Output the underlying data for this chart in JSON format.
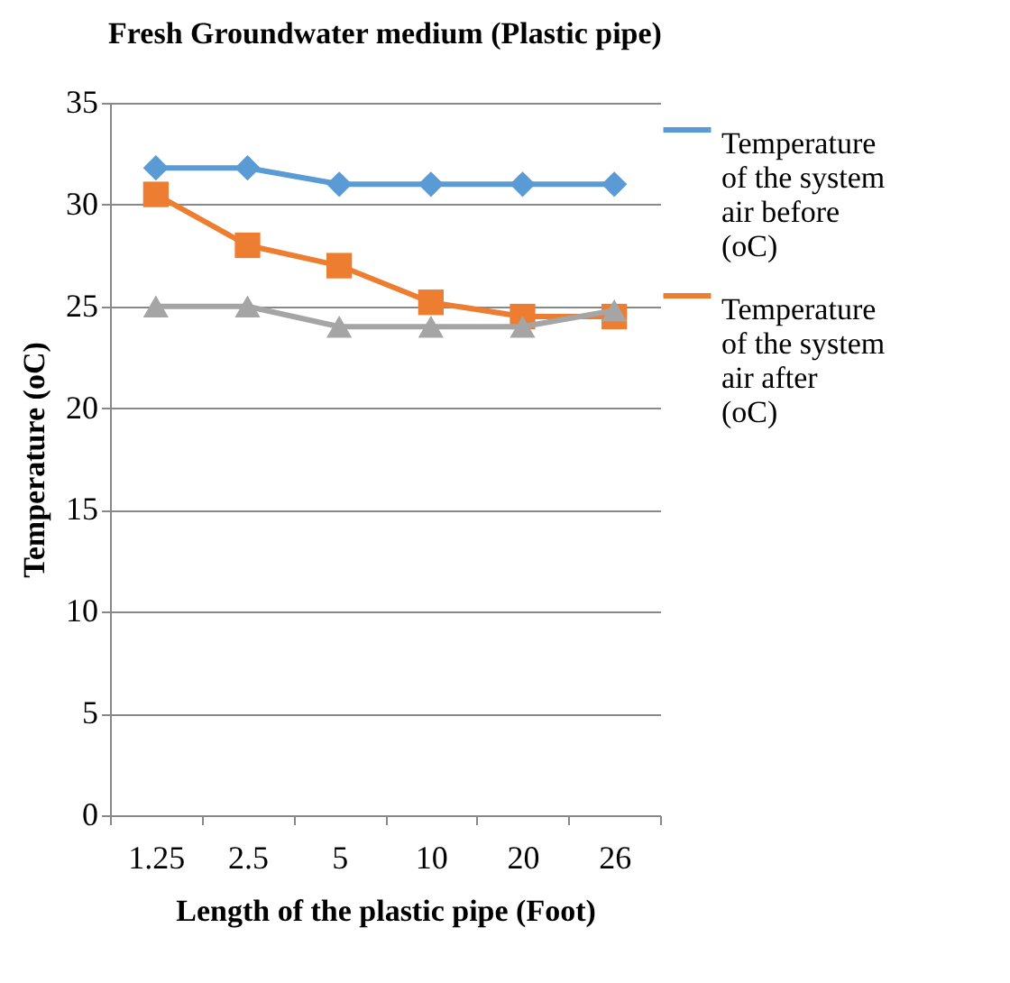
{
  "chart_data": {
    "type": "line",
    "title": "Fresh Groundwater medium (Plastic pipe)",
    "xlabel": "Length of the plastic pipe (Foot)",
    "ylabel": "Temperature (oC)",
    "categories": [
      "1.25",
      "2.5",
      "5",
      "10",
      "20",
      "26"
    ],
    "series": [
      {
        "name": "Temperature of the system air before (oC)",
        "color": "#5b9bd5",
        "marker": "diamond",
        "values": [
          31.8,
          31.8,
          31,
          31,
          31,
          31
        ]
      },
      {
        "name": "Temperature of the system air after (oC)",
        "color": "#ed7d31",
        "marker": "square",
        "values": [
          30.5,
          28,
          27,
          25.2,
          24.5,
          24.5
        ]
      },
      {
        "color": "#a5a5a5",
        "marker": "triangle",
        "values": [
          25,
          25,
          24,
          24,
          24,
          24.8
        ]
      }
    ],
    "ylim": [
      0,
      35
    ],
    "yticks": [
      0,
      5,
      10,
      15,
      20,
      25,
      30,
      35
    ],
    "grid": "y",
    "legend": "right",
    "line_style": "solid"
  }
}
